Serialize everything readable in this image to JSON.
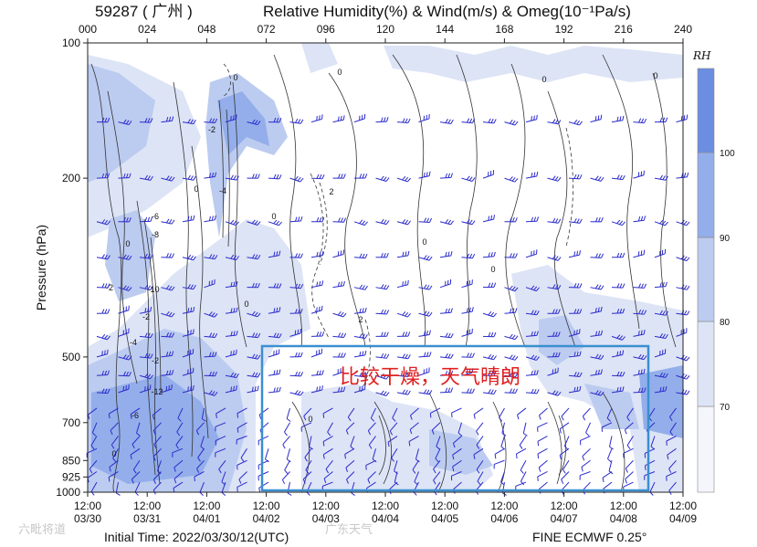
{
  "chart_data": {
    "type": "time-pressure cross-section",
    "station": "59287 ( 广州 )",
    "title": "Relative Humidity(%) & Wind(m/s) & Omeg(10⁻¹Pa/s)",
    "ylabel": "Pressure (hPa)",
    "top_ticks": [
      "000",
      "024",
      "048",
      "072",
      "096",
      "120",
      "144",
      "168",
      "192",
      "216",
      "240"
    ],
    "y_ticks": [
      "100",
      "200",
      "500",
      "700",
      "850",
      "925",
      "1000"
    ],
    "y_values": [
      100,
      200,
      500,
      700,
      850,
      925,
      1000
    ],
    "ylim": [
      1000,
      100
    ],
    "bottom_ticks": [
      {
        "time": "12:00",
        "date": "03/30"
      },
      {
        "time": "12:00",
        "date": "03/31"
      },
      {
        "time": "12:00",
        "date": "04/01"
      },
      {
        "time": "12:00",
        "date": "04/02"
      },
      {
        "time": "12:00",
        "date": "04/03"
      },
      {
        "time": "12:00",
        "date": "04/04"
      },
      {
        "time": "12:00",
        "date": "04/05"
      },
      {
        "time": "12:00",
        "date": "04/06"
      },
      {
        "time": "12:00",
        "date": "04/07"
      },
      {
        "time": "12:00",
        "date": "04/08"
      },
      {
        "time": "12:00",
        "date": "04/09"
      }
    ],
    "colorbar": {
      "label": "RH",
      "levels": [
        "70",
        "80",
        "90",
        "100"
      ],
      "colors": [
        "#f4f6fc",
        "#dde4f6",
        "#bccbf0",
        "#93aeea",
        "#6b8ee2"
      ]
    },
    "omega_contour_labels": [
      "0",
      "-2",
      "-4",
      "-6",
      "-8",
      "-10",
      "-12",
      "2"
    ],
    "annotation": "比较干燥，天气晴朗",
    "initial_time": "Initial Time: 2022/03/30/12(UTC)",
    "model": "FINE ECMWF  0.25°",
    "watermarks": [
      "六毗将道",
      "广东天气"
    ]
  }
}
